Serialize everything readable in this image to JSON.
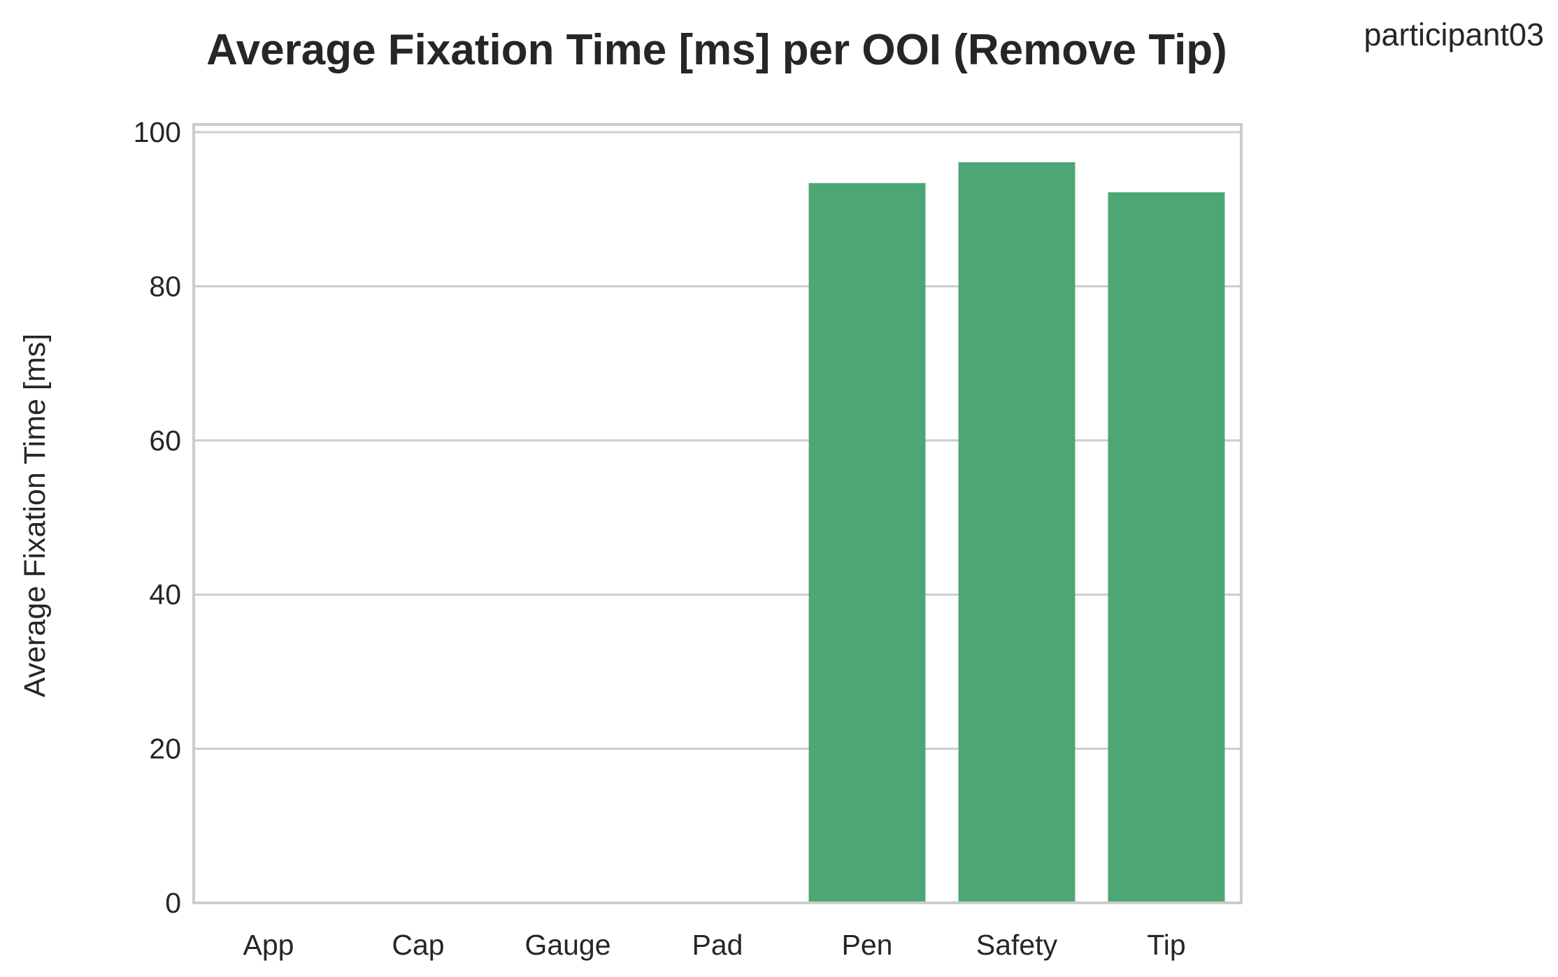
{
  "chart_data": {
    "type": "bar",
    "title": "Average Fixation Time [ms] per OOI (Remove Tip)",
    "corner_label": "participant03",
    "xlabel": "",
    "ylabel": "Average Fixation Time [ms]",
    "categories": [
      "App",
      "Cap",
      "Gauge",
      "Pad",
      "Pen",
      "Safety",
      "Tip"
    ],
    "values": [
      0,
      0,
      0,
      0,
      93.4,
      96.1,
      92.2
    ],
    "ylim": [
      0,
      101
    ],
    "yticks": [
      0,
      20,
      40,
      60,
      80,
      100
    ],
    "grid": "horizontal",
    "bar_color": "#4da674",
    "grid_color": "#cccccc",
    "frame_color": "#cccccc"
  }
}
